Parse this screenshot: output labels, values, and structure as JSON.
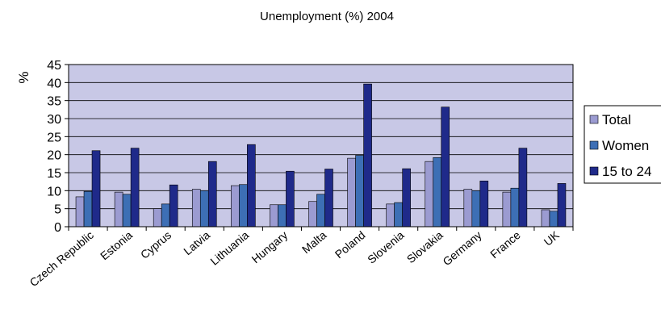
{
  "chart_data": {
    "type": "bar",
    "title": "Unemployment (%) 2004",
    "ylabel": "%",
    "xlabel": "",
    "ylim": [
      0,
      45
    ],
    "yticks": [
      0,
      5,
      10,
      15,
      20,
      25,
      30,
      35,
      40,
      45
    ],
    "grid": true,
    "legend_position": "right",
    "categories": [
      "Czech Republic",
      "Estonia",
      "Cyprus",
      "Latvia",
      "Lithuania",
      "Hungary",
      "Malta",
      "Poland",
      "Slovenia",
      "Slovakia",
      "Germany",
      "France",
      "UK"
    ],
    "series": [
      {
        "name": "Total",
        "color": "#9b9bd1",
        "values": [
          8.3,
          9.6,
          5.0,
          10.4,
          11.4,
          6.1,
          7.0,
          19.0,
          6.3,
          18.1,
          10.4,
          9.6,
          4.7
        ]
      },
      {
        "name": "Women",
        "color": "#3d6fb5",
        "values": [
          9.8,
          9.0,
          6.3,
          10.0,
          11.7,
          6.1,
          9.0,
          19.8,
          6.7,
          19.2,
          10.0,
          10.7,
          4.3
        ]
      },
      {
        "name": "15 to 24",
        "color": "#1f2a8a",
        "values": [
          21.1,
          21.8,
          11.6,
          18.1,
          22.8,
          15.4,
          16.0,
          39.6,
          16.1,
          33.2,
          12.7,
          21.8,
          12.0
        ]
      }
    ],
    "plot_background": "#c8c8e6"
  }
}
